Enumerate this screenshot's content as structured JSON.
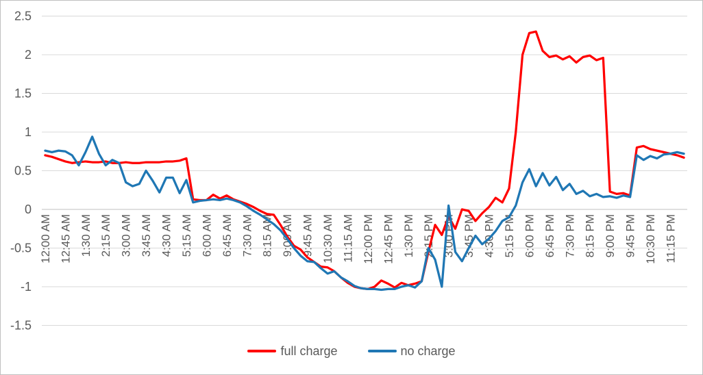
{
  "chart_data": {
    "type": "line",
    "title": "",
    "xlabel": "",
    "ylabel": "",
    "grid": true,
    "legend_position": "bottom",
    "y_ticks": [
      2.5,
      2,
      1.5,
      1,
      0.5,
      0,
      -0.5,
      -1,
      -1.5
    ],
    "ylim": [
      -1.75,
      2.6
    ],
    "x_tick_every": 3,
    "x_tick_labels": [
      "12:00 AM",
      "12:45 AM",
      "1:30 AM",
      "2:15 AM",
      "3:00 AM",
      "3:45 AM",
      "4:30 AM",
      "5:15 AM",
      "6:00 AM",
      "6:45 AM",
      "7:30 AM",
      "8:15 AM",
      "9:00 AM",
      "9:45 AM",
      "10:30 AM",
      "11:15 AM",
      "12:00 PM",
      "12:45 PM",
      "1:30 PM",
      "2:15 PM",
      "3:00 PM",
      "3:45 PM",
      "4:30 PM",
      "5:15 PM",
      "6:00 PM",
      "6:45 PM",
      "7:30 PM",
      "8:15 PM",
      "9:00 PM",
      "9:45 PM",
      "10:30 PM",
      "11:15 PM"
    ],
    "x": [
      "12:00 AM",
      "12:15 AM",
      "12:30 AM",
      "12:45 AM",
      "1:00 AM",
      "1:15 AM",
      "1:30 AM",
      "1:45 AM",
      "2:00 AM",
      "2:15 AM",
      "2:30 AM",
      "2:45 AM",
      "3:00 AM",
      "3:15 AM",
      "3:30 AM",
      "3:45 AM",
      "4:00 AM",
      "4:15 AM",
      "4:30 AM",
      "4:45 AM",
      "5:00 AM",
      "5:15 AM",
      "5:30 AM",
      "5:45 AM",
      "6:00 AM",
      "6:15 AM",
      "6:30 AM",
      "6:45 AM",
      "7:00 AM",
      "7:15 AM",
      "7:30 AM",
      "7:45 AM",
      "8:00 AM",
      "8:15 AM",
      "8:30 AM",
      "8:45 AM",
      "9:00 AM",
      "9:15 AM",
      "9:30 AM",
      "9:45 AM",
      "10:00 AM",
      "10:15 AM",
      "10:30 AM",
      "10:45 AM",
      "11:00 AM",
      "11:15 AM",
      "11:30 AM",
      "11:45 AM",
      "12:00 PM",
      "12:15 PM",
      "12:30 PM",
      "12:45 PM",
      "1:00 PM",
      "1:15 PM",
      "1:30 PM",
      "1:45 PM",
      "2:00 PM",
      "2:15 PM",
      "2:30 PM",
      "2:45 PM",
      "3:00 PM",
      "3:15 PM",
      "3:30 PM",
      "3:45 PM",
      "4:00 PM",
      "4:15 PM",
      "4:30 PM",
      "4:45 PM",
      "5:00 PM",
      "5:15 PM",
      "5:30 PM",
      "5:45 PM",
      "6:00 PM",
      "6:15 PM",
      "6:30 PM",
      "6:45 PM",
      "7:00 PM",
      "7:15 PM",
      "7:30 PM",
      "7:45 PM",
      "8:00 PM",
      "8:15 PM",
      "8:30 PM",
      "8:45 PM",
      "9:00 PM",
      "9:15 PM",
      "9:30 PM",
      "9:45 PM",
      "10:00 PM",
      "10:15 PM",
      "10:30 PM",
      "10:45 PM",
      "11:00 PM",
      "11:15 PM",
      "11:30 PM",
      "11:45 PM"
    ],
    "series": [
      {
        "name": "full charge",
        "color": "#FF0000",
        "values": [
          0.7,
          0.68,
          0.65,
          0.62,
          0.6,
          0.61,
          0.62,
          0.61,
          0.61,
          0.62,
          0.6,
          0.6,
          0.61,
          0.6,
          0.6,
          0.61,
          0.61,
          0.61,
          0.62,
          0.62,
          0.63,
          0.66,
          0.13,
          0.12,
          0.12,
          0.19,
          0.14,
          0.18,
          0.13,
          0.1,
          0.07,
          0.03,
          -0.02,
          -0.06,
          -0.07,
          -0.2,
          -0.35,
          -0.47,
          -0.52,
          -0.62,
          -0.68,
          -0.74,
          -0.75,
          -0.8,
          -0.88,
          -0.95,
          -1.0,
          -1.02,
          -1.03,
          -1.0,
          -0.92,
          -0.96,
          -1.01,
          -0.95,
          -0.98,
          -0.96,
          -0.93,
          -0.55,
          -0.2,
          -0.33,
          -0.09,
          -0.25,
          0.0,
          -0.02,
          -0.15,
          -0.05,
          0.03,
          0.15,
          0.09,
          0.27,
          1.0,
          2.0,
          2.28,
          2.3,
          2.05,
          1.97,
          1.99,
          1.94,
          1.98,
          1.9,
          1.97,
          1.99,
          1.93,
          1.96,
          0.23,
          0.2,
          0.21,
          0.18,
          0.8,
          0.82,
          0.78,
          0.76,
          0.74,
          0.72,
          0.7,
          0.67
        ]
      },
      {
        "name": "no charge",
        "color": "#1F77B4",
        "values": [
          0.76,
          0.74,
          0.76,
          0.75,
          0.7,
          0.57,
          0.74,
          0.94,
          0.72,
          0.57,
          0.64,
          0.6,
          0.35,
          0.3,
          0.33,
          0.5,
          0.37,
          0.22,
          0.41,
          0.41,
          0.21,
          0.38,
          0.09,
          0.11,
          0.12,
          0.13,
          0.12,
          0.14,
          0.12,
          0.09,
          0.04,
          -0.02,
          -0.07,
          -0.13,
          -0.19,
          -0.27,
          -0.38,
          -0.5,
          -0.6,
          -0.67,
          -0.68,
          -0.76,
          -0.83,
          -0.8,
          -0.88,
          -0.93,
          -0.99,
          -1.02,
          -1.03,
          -1.03,
          -1.04,
          -1.03,
          -1.03,
          -1.0,
          -0.98,
          -1.01,
          -0.93,
          -0.5,
          -0.65,
          -1.0,
          0.05,
          -0.55,
          -0.67,
          -0.5,
          -0.34,
          -0.45,
          -0.38,
          -0.28,
          -0.15,
          -0.1,
          0.05,
          0.35,
          0.52,
          0.3,
          0.47,
          0.31,
          0.42,
          0.25,
          0.33,
          0.2,
          0.24,
          0.17,
          0.2,
          0.16,
          0.17,
          0.15,
          0.18,
          0.16,
          0.7,
          0.64,
          0.69,
          0.66,
          0.71,
          0.72,
          0.74,
          0.72
        ]
      }
    ],
    "style": {
      "gridline_color": "#d9d9d9",
      "axis_line_color": "#bfbfbf",
      "tick_label_color": "#595959",
      "line_width": 3.25
    }
  }
}
